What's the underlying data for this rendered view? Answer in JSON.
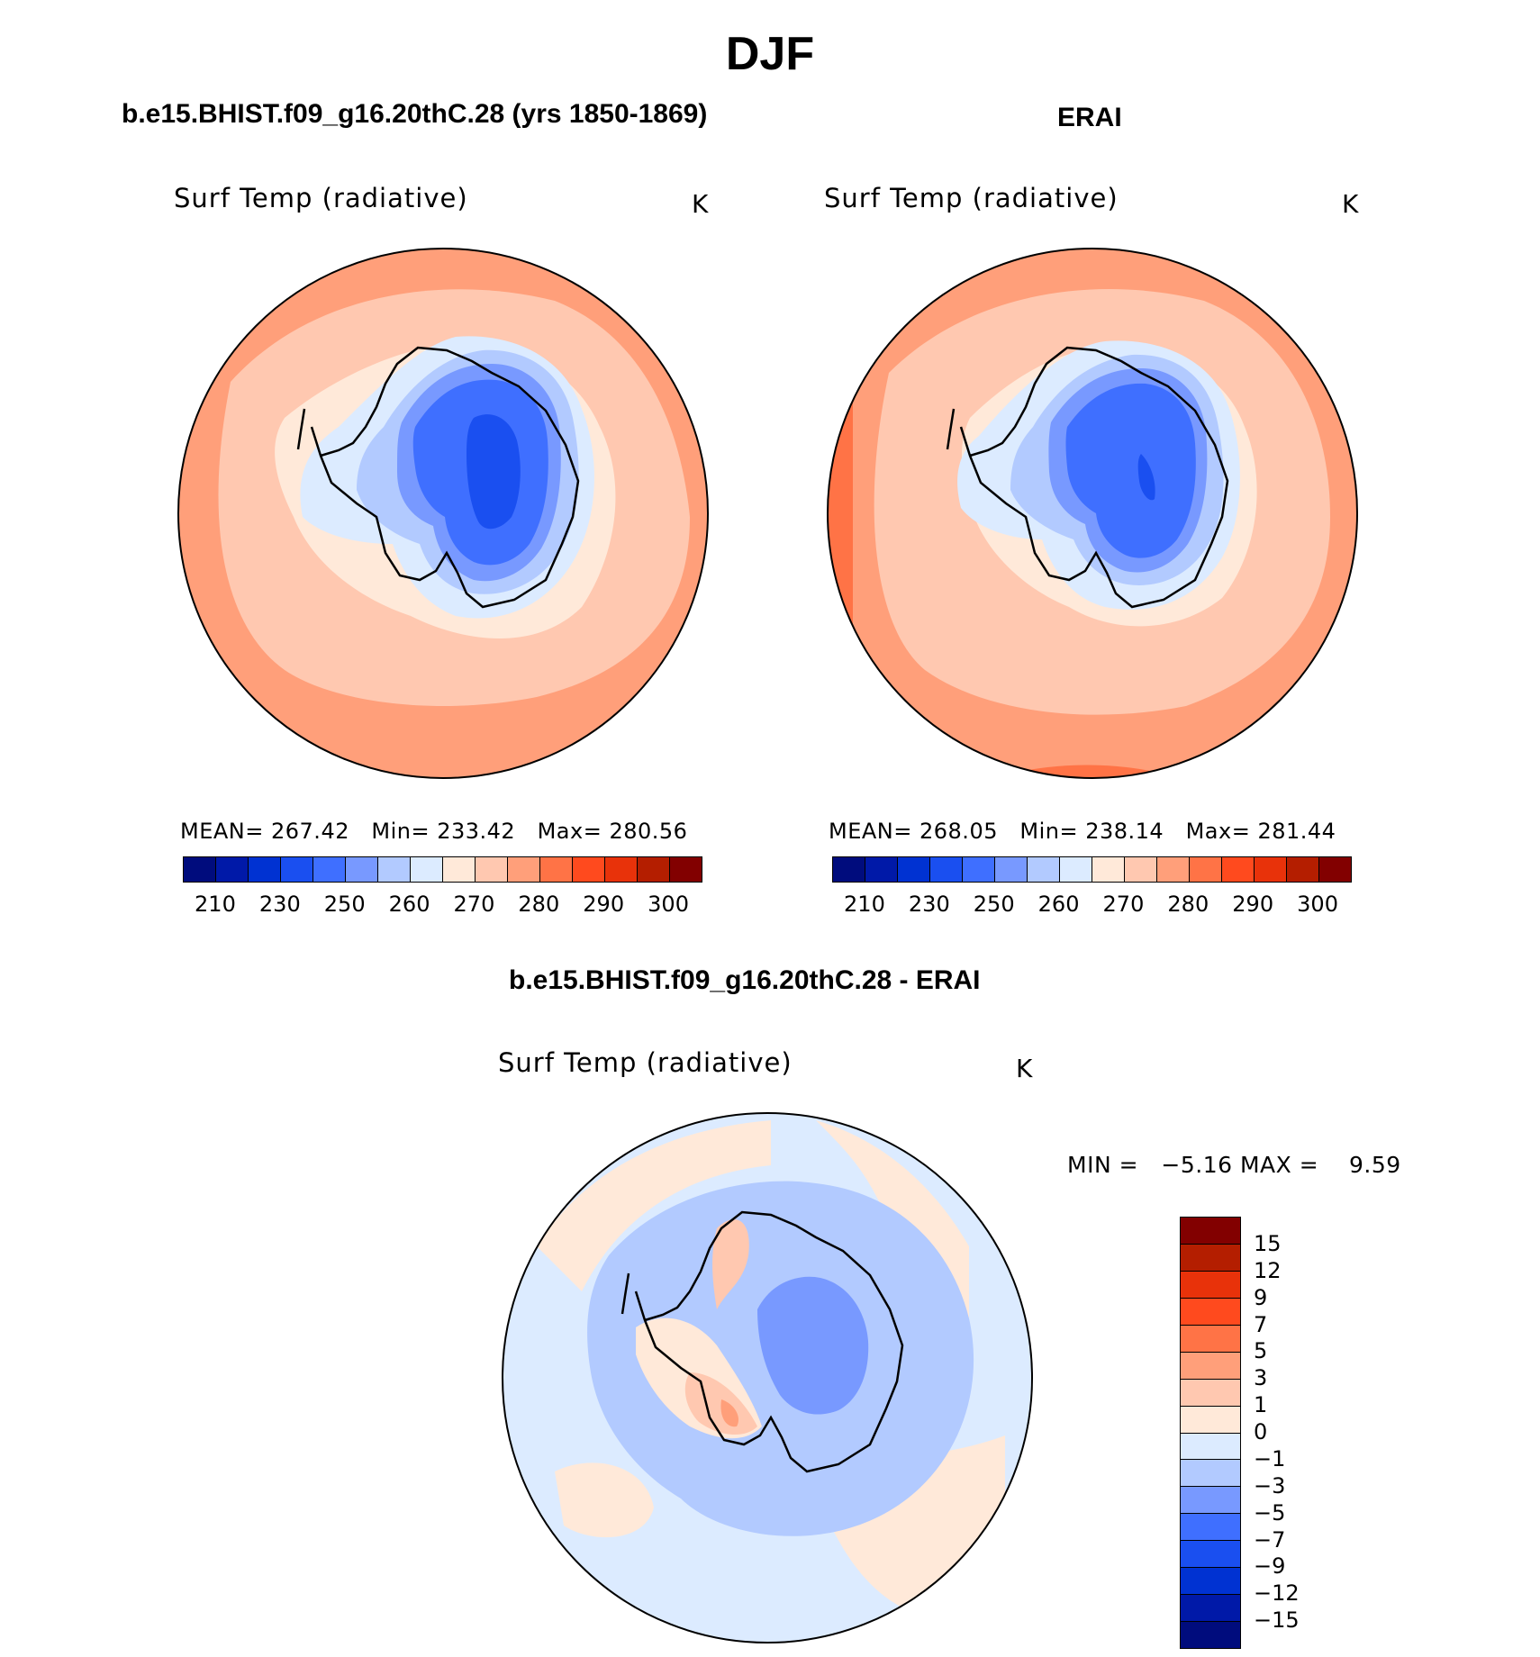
{
  "title": "DJF",
  "panels": [
    {
      "name": "b.e15.BHIST.f09_g16.20thC.28 (yrs 1850-1869)",
      "variable": "Surf Temp (radiative)",
      "units": "K",
      "stats": {
        "mean_label": "MEAN=",
        "mean": "267.42",
        "min_label": "Min=",
        "min": "233.42",
        "max_label": "Max=",
        "max": "280.56"
      }
    },
    {
      "name": "ERAI",
      "variable": "Surf Temp (radiative)",
      "units": "K",
      "stats": {
        "mean_label": "MEAN=",
        "mean": "268.05",
        "min_label": "Min=",
        "min": "238.14",
        "max_label": "Max=",
        "max": "281.44"
      }
    },
    {
      "name": "b.e15.BHIST.f09_g16.20thC.28 - ERAI",
      "variable": "Surf Temp (radiative)",
      "units": "K",
      "minmax": {
        "min_label": "MIN =",
        "min": "−5.16",
        "max_label": "MAX =",
        "max": "9.59"
      }
    }
  ],
  "colorbar_abs": {
    "colors": [
      "#000c7d",
      "#0019a8",
      "#0032d2",
      "#1a4ff0",
      "#3f6fff",
      "#7899ff",
      "#b2caff",
      "#dcebff",
      "#ffe9d9",
      "#ffc8b0",
      "#ff9f7a",
      "#ff7346",
      "#ff4a1e",
      "#e8320a",
      "#b41e00",
      "#820000"
    ],
    "ticks": [
      "210",
      "230",
      "250",
      "260",
      "270",
      "280",
      "290",
      "300"
    ]
  },
  "colorbar_diff": {
    "colors": [
      "#820000",
      "#b41e00",
      "#e8320a",
      "#ff4a1e",
      "#ff7346",
      "#ff9f7a",
      "#ffc8b0",
      "#ffe9d9",
      "#dcebff",
      "#b2caff",
      "#7899ff",
      "#3f6fff",
      "#1a4ff0",
      "#0032d2",
      "#0019a8",
      "#000c7d"
    ],
    "ticks": [
      "15",
      "12",
      "9",
      "7",
      "5",
      "3",
      "1",
      "0",
      "−1",
      "−3",
      "−5",
      "−7",
      "−9",
      "−12",
      "−15"
    ]
  }
}
